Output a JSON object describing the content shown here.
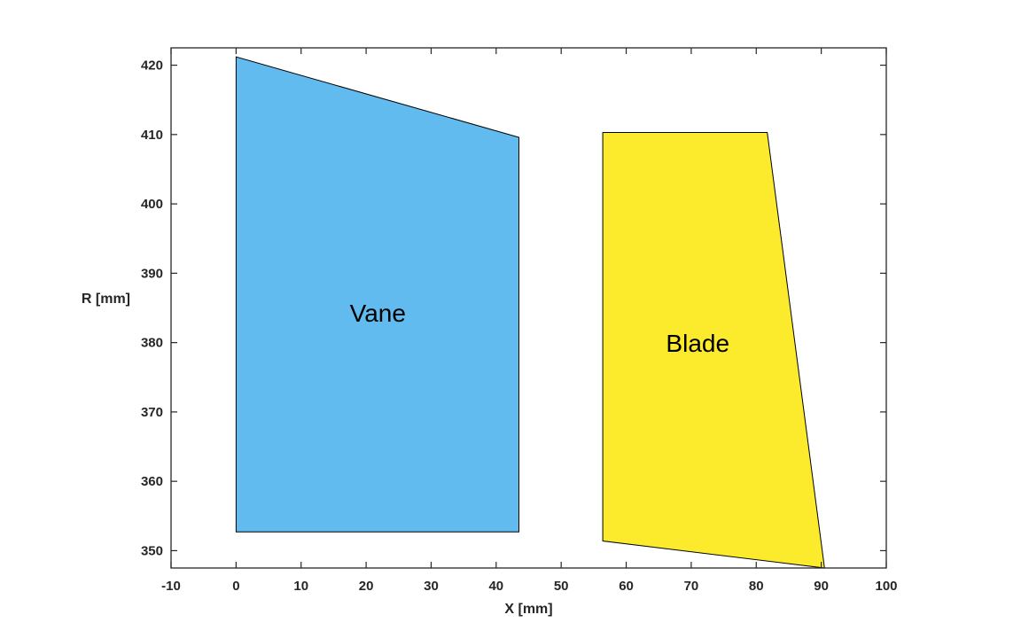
{
  "chart_data": {
    "type": "area",
    "xlabel": "X [mm]",
    "ylabel": "R [mm]",
    "xlim": [
      -10,
      100
    ],
    "ylim": [
      347.5,
      422.5
    ],
    "xticks": [
      -10,
      0,
      10,
      20,
      30,
      40,
      50,
      60,
      70,
      80,
      90,
      100
    ],
    "yticks": [
      350,
      360,
      370,
      380,
      390,
      400,
      410,
      420
    ],
    "grid": false,
    "series": [
      {
        "name": "Vane",
        "color": "#62BBEF",
        "label_position": [
          21.8,
          383
        ],
        "points": [
          [
            0,
            352.7
          ],
          [
            0,
            421.2
          ],
          [
            43.5,
            409.6
          ],
          [
            43.5,
            352.7
          ]
        ]
      },
      {
        "name": "Blade",
        "color": "#FCEB2C",
        "label_position": [
          71.0,
          378.7
        ],
        "points": [
          [
            56.4,
            351.4
          ],
          [
            56.4,
            410.3
          ],
          [
            81.7,
            410.3
          ],
          [
            90.5,
            347.5
          ]
        ]
      }
    ]
  }
}
